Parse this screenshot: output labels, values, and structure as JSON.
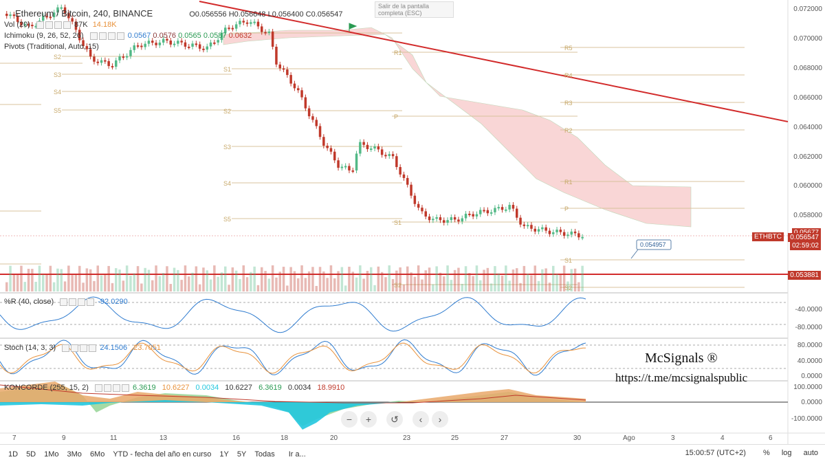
{
  "header": {
    "symbol": "Ethereum / Bitcoin, 240, BINANCE",
    "ohlc": "O0.056556  H0.056648  L0.056400  C0.056547",
    "exit_fullscreen": "Salir de la pantalla completa (ESC)"
  },
  "indicators": {
    "vol": {
      "label": "Vol (20)",
      "v1": "87K",
      "v2": "14.18K"
    },
    "ichimoku": {
      "label": "Ichimoku (9, 26, 52, 26)",
      "values": [
        "0.0567",
        "0.0576",
        "0.0565",
        "0.0587",
        "0.0632"
      ]
    },
    "pivots": {
      "label": "Pivots (Traditional, Auto, 15)"
    }
  },
  "price_axis": {
    "ticks": [
      "0.072000",
      "0.070000",
      "0.068000",
      "0.066000",
      "0.064000",
      "0.062000",
      "0.060000",
      "0.058000",
      "0.05677",
      "0.056547",
      "02:59:02",
      "0.053881"
    ],
    "eth_tag": "ETHBTC",
    "current": "0.056547",
    "countdown": "02:59:02",
    "support": "0.053881",
    "callout": "0.054957"
  },
  "pivot_labels": {
    "left": [
      "S2",
      "S3",
      "S4",
      "S5"
    ],
    "mid": [
      "R1",
      "P",
      "S1",
      "S2",
      "S3",
      "S4",
      "S5",
      "S1",
      "S2"
    ],
    "right": [
      "R5",
      "R4",
      "R3",
      "R2",
      "R1",
      "P",
      "S1",
      "S2"
    ]
  },
  "williams": {
    "label": "%R (40, close)",
    "value": "-92.0290",
    "ticks": [
      "-40.0000",
      "-80.0000"
    ]
  },
  "stoch": {
    "label": "Stoch (14, 3, 3)",
    "k": "24.1506",
    "d": "23.7051",
    "ticks": [
      "80.0000",
      "40.0000",
      "0.0000"
    ]
  },
  "koncorde": {
    "label": "KONCORDE (255, 15, 2)",
    "values": [
      "6.3619",
      "10.6227",
      "0.0034",
      "10.6227",
      "6.3619",
      "0.0034",
      "18.9910"
    ],
    "ticks": [
      "100.0000",
      "0.0000",
      "-100.0000"
    ]
  },
  "time_axis": [
    "7",
    "9",
    "11",
    "13",
    "16",
    "18",
    "20",
    "23",
    "25",
    "27",
    "30",
    "Ago",
    "3",
    "4",
    "6"
  ],
  "watermark": {
    "line1": "McSignals ®",
    "line2": "https://t.me/mcsignalspublic"
  },
  "bottom": {
    "ranges": [
      "1D",
      "5D",
      "1Mo",
      "3Mo",
      "6Mo",
      "YTD - fecha del año en curso",
      "1Y",
      "5Y",
      "Todas",
      "Ir a..."
    ],
    "time": "15:00:57 (UTC+2)",
    "pct": "%",
    "log": "log",
    "auto": "auto"
  },
  "colors": {
    "up": "#53b987",
    "down": "#c0392b",
    "cloud": "#f7c6c6",
    "trend": "#d22b2b",
    "pivot": "#c8a96a",
    "blue": "#2e7bcf",
    "orange": "#e8913a"
  }
}
